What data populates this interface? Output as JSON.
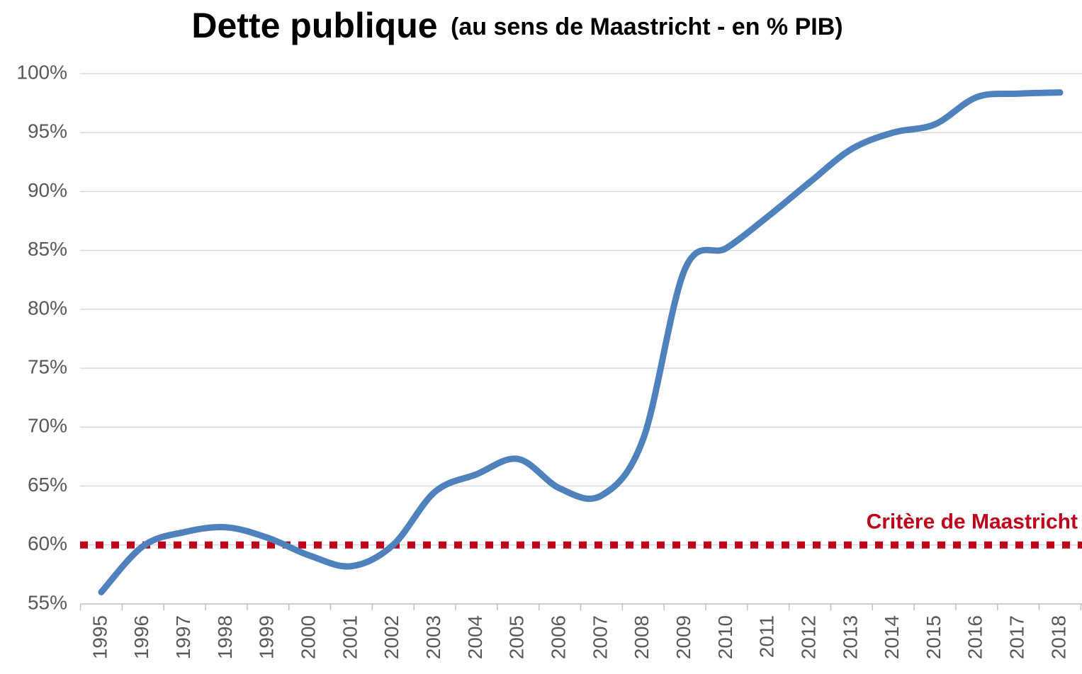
{
  "chart_data": {
    "type": "line",
    "title": "Dette publique",
    "subtitle": "(au sens de Maastricht - en % PIB)",
    "categories": [
      "1995",
      "1996",
      "1997",
      "1998",
      "1999",
      "2000",
      "2001",
      "2002",
      "2003",
      "2004",
      "2005",
      "2006",
      "2007",
      "2008",
      "2009",
      "2010",
      "2011",
      "2012",
      "2013",
      "2014",
      "2015",
      "2016",
      "2017",
      "2018"
    ],
    "series": [
      {
        "name": "Dette publique",
        "color": "#4f81bd",
        "values": [
          56.0,
          59.9,
          61.1,
          61.5,
          60.6,
          59.1,
          58.2,
          60.0,
          64.5,
          66.0,
          67.3,
          64.8,
          64.2,
          69.0,
          83.4,
          85.2,
          87.9,
          90.8,
          93.6,
          95.0,
          95.7,
          98.0,
          98.3,
          98.4
        ]
      }
    ],
    "ylim": [
      55,
      100
    ],
    "yticks": [
      {
        "value": 55,
        "label": "55%"
      },
      {
        "value": 60,
        "label": "60%"
      },
      {
        "value": 65,
        "label": "65%"
      },
      {
        "value": 70,
        "label": "70%"
      },
      {
        "value": 75,
        "label": "75%"
      },
      {
        "value": 80,
        "label": "80%"
      },
      {
        "value": 85,
        "label": "85%"
      },
      {
        "value": 90,
        "label": "90%"
      },
      {
        "value": 95,
        "label": "95%"
      },
      {
        "value": 100,
        "label": "100%"
      }
    ],
    "grid": true,
    "reference_line": {
      "value": 60,
      "label": "Critère de Maastricht",
      "color": "#c00018"
    }
  }
}
